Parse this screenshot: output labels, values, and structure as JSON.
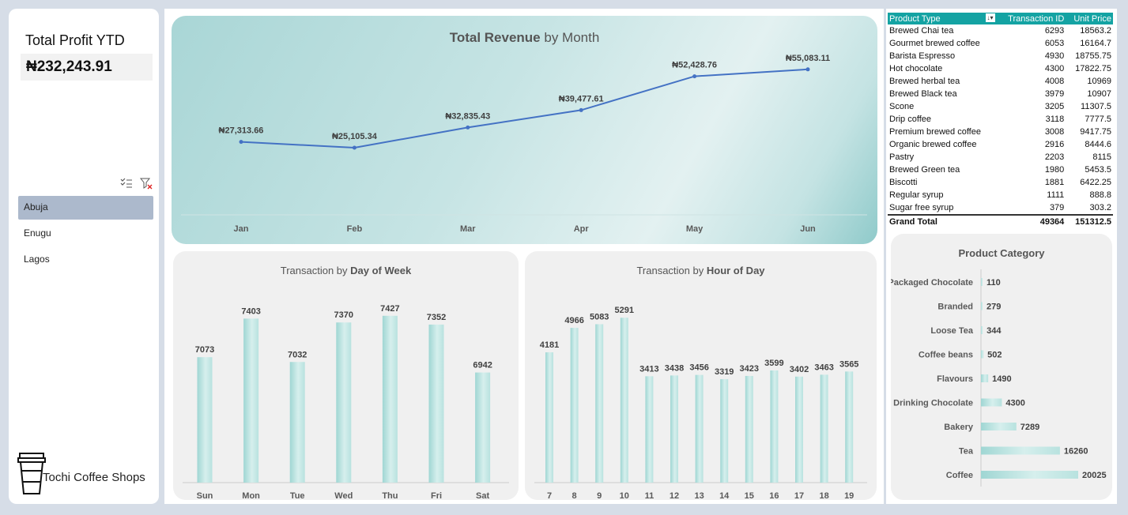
{
  "kpi": {
    "title": "Total Profit YTD",
    "value": "₦232,243.91"
  },
  "slicer": {
    "icons": [
      "multi-select-icon",
      "clear-filter-icon"
    ],
    "items": [
      {
        "label": "Abuja",
        "selected": true
      },
      {
        "label": "Enugu",
        "selected": false
      },
      {
        "label": "Lagos",
        "selected": false
      }
    ]
  },
  "brand": {
    "name": "Tochi Coffee Shops",
    "icon": "coffee-cup-icon"
  },
  "revenue_chart": {
    "title_bold": "Total Revenue",
    "title_rest": " by Month"
  },
  "dow_chart": {
    "title_rest": "Transaction by ",
    "title_bold": "Day of Week"
  },
  "hod_chart": {
    "title_rest": "Transaction by ",
    "title_bold": "Hour of Day"
  },
  "category_chart": {
    "title": "Product Category"
  },
  "table": {
    "headers": [
      "Product Type",
      "Transaction ID",
      "Unit Price"
    ],
    "rows": [
      [
        "Brewed Chai tea",
        "6293",
        "18563.2"
      ],
      [
        "Gourmet brewed coffee",
        "6053",
        "16164.7"
      ],
      [
        "Barista Espresso",
        "4930",
        "18755.75"
      ],
      [
        "Hot chocolate",
        "4300",
        "17822.75"
      ],
      [
        "Brewed herbal tea",
        "4008",
        "10969"
      ],
      [
        "Brewed Black tea",
        "3979",
        "10907"
      ],
      [
        "Scone",
        "3205",
        "11307.5"
      ],
      [
        "Drip coffee",
        "3118",
        "7777.5"
      ],
      [
        "Premium brewed coffee",
        "3008",
        "9417.75"
      ],
      [
        "Organic brewed coffee",
        "2916",
        "8444.6"
      ],
      [
        "Pastry",
        "2203",
        "8115"
      ],
      [
        "Brewed Green tea",
        "1980",
        "5453.5"
      ],
      [
        "Biscotti",
        "1881",
        "6422.25"
      ],
      [
        "Regular syrup",
        "1111",
        "888.8"
      ],
      [
        "Sugar free syrup",
        "379",
        "303.2"
      ]
    ],
    "total": [
      "Grand Total",
      "49364",
      "151312.5"
    ],
    "filter_icon": "sort-filter-icon"
  },
  "chart_data": [
    {
      "type": "line",
      "title": "Total Revenue by Month",
      "categories": [
        "Jan",
        "Feb",
        "Mar",
        "Apr",
        "May",
        "Jun"
      ],
      "values": [
        27313.66,
        25105.34,
        32835.43,
        39477.61,
        52428.76,
        55083.11
      ],
      "labels": [
        "₦27,313.66",
        "₦25,105.34",
        "₦32,835.43",
        "₦39,477.61",
        "₦52,428.76",
        "₦55,083.11"
      ],
      "ylim": [
        0,
        65000
      ],
      "color": "#4472c4"
    },
    {
      "type": "bar",
      "title": "Transaction by Day of Week",
      "categories": [
        "Sun",
        "Mon",
        "Tue",
        "Wed",
        "Thu",
        "Fri",
        "Sat"
      ],
      "values": [
        7073,
        7403,
        7032,
        7370,
        7427,
        7352,
        6942
      ],
      "ylim": [
        6000,
        7500
      ],
      "color": "#a8dcd9"
    },
    {
      "type": "bar",
      "title": "Transaction by Hour of Day",
      "categories": [
        "7",
        "8",
        "9",
        "10",
        "11",
        "12",
        "13",
        "14",
        "15",
        "16",
        "17",
        "18",
        "19"
      ],
      "values": [
        4181,
        4966,
        5083,
        5291,
        3413,
        3438,
        3456,
        3319,
        3423,
        3599,
        3402,
        3463,
        3565
      ],
      "ylim": [
        0,
        5500
      ],
      "color": "#a8dcd9"
    },
    {
      "type": "bar",
      "orientation": "horizontal",
      "title": "Product Category",
      "categories": [
        "Packaged Chocolate",
        "Branded",
        "Loose Tea",
        "Coffee beans",
        "Flavours",
        "Drinking Chocolate",
        "Bakery",
        "Tea",
        "Coffee"
      ],
      "values": [
        110,
        279,
        344,
        502,
        1490,
        4300,
        7289,
        16260,
        20025
      ],
      "color": "#a8dcd9"
    }
  ]
}
